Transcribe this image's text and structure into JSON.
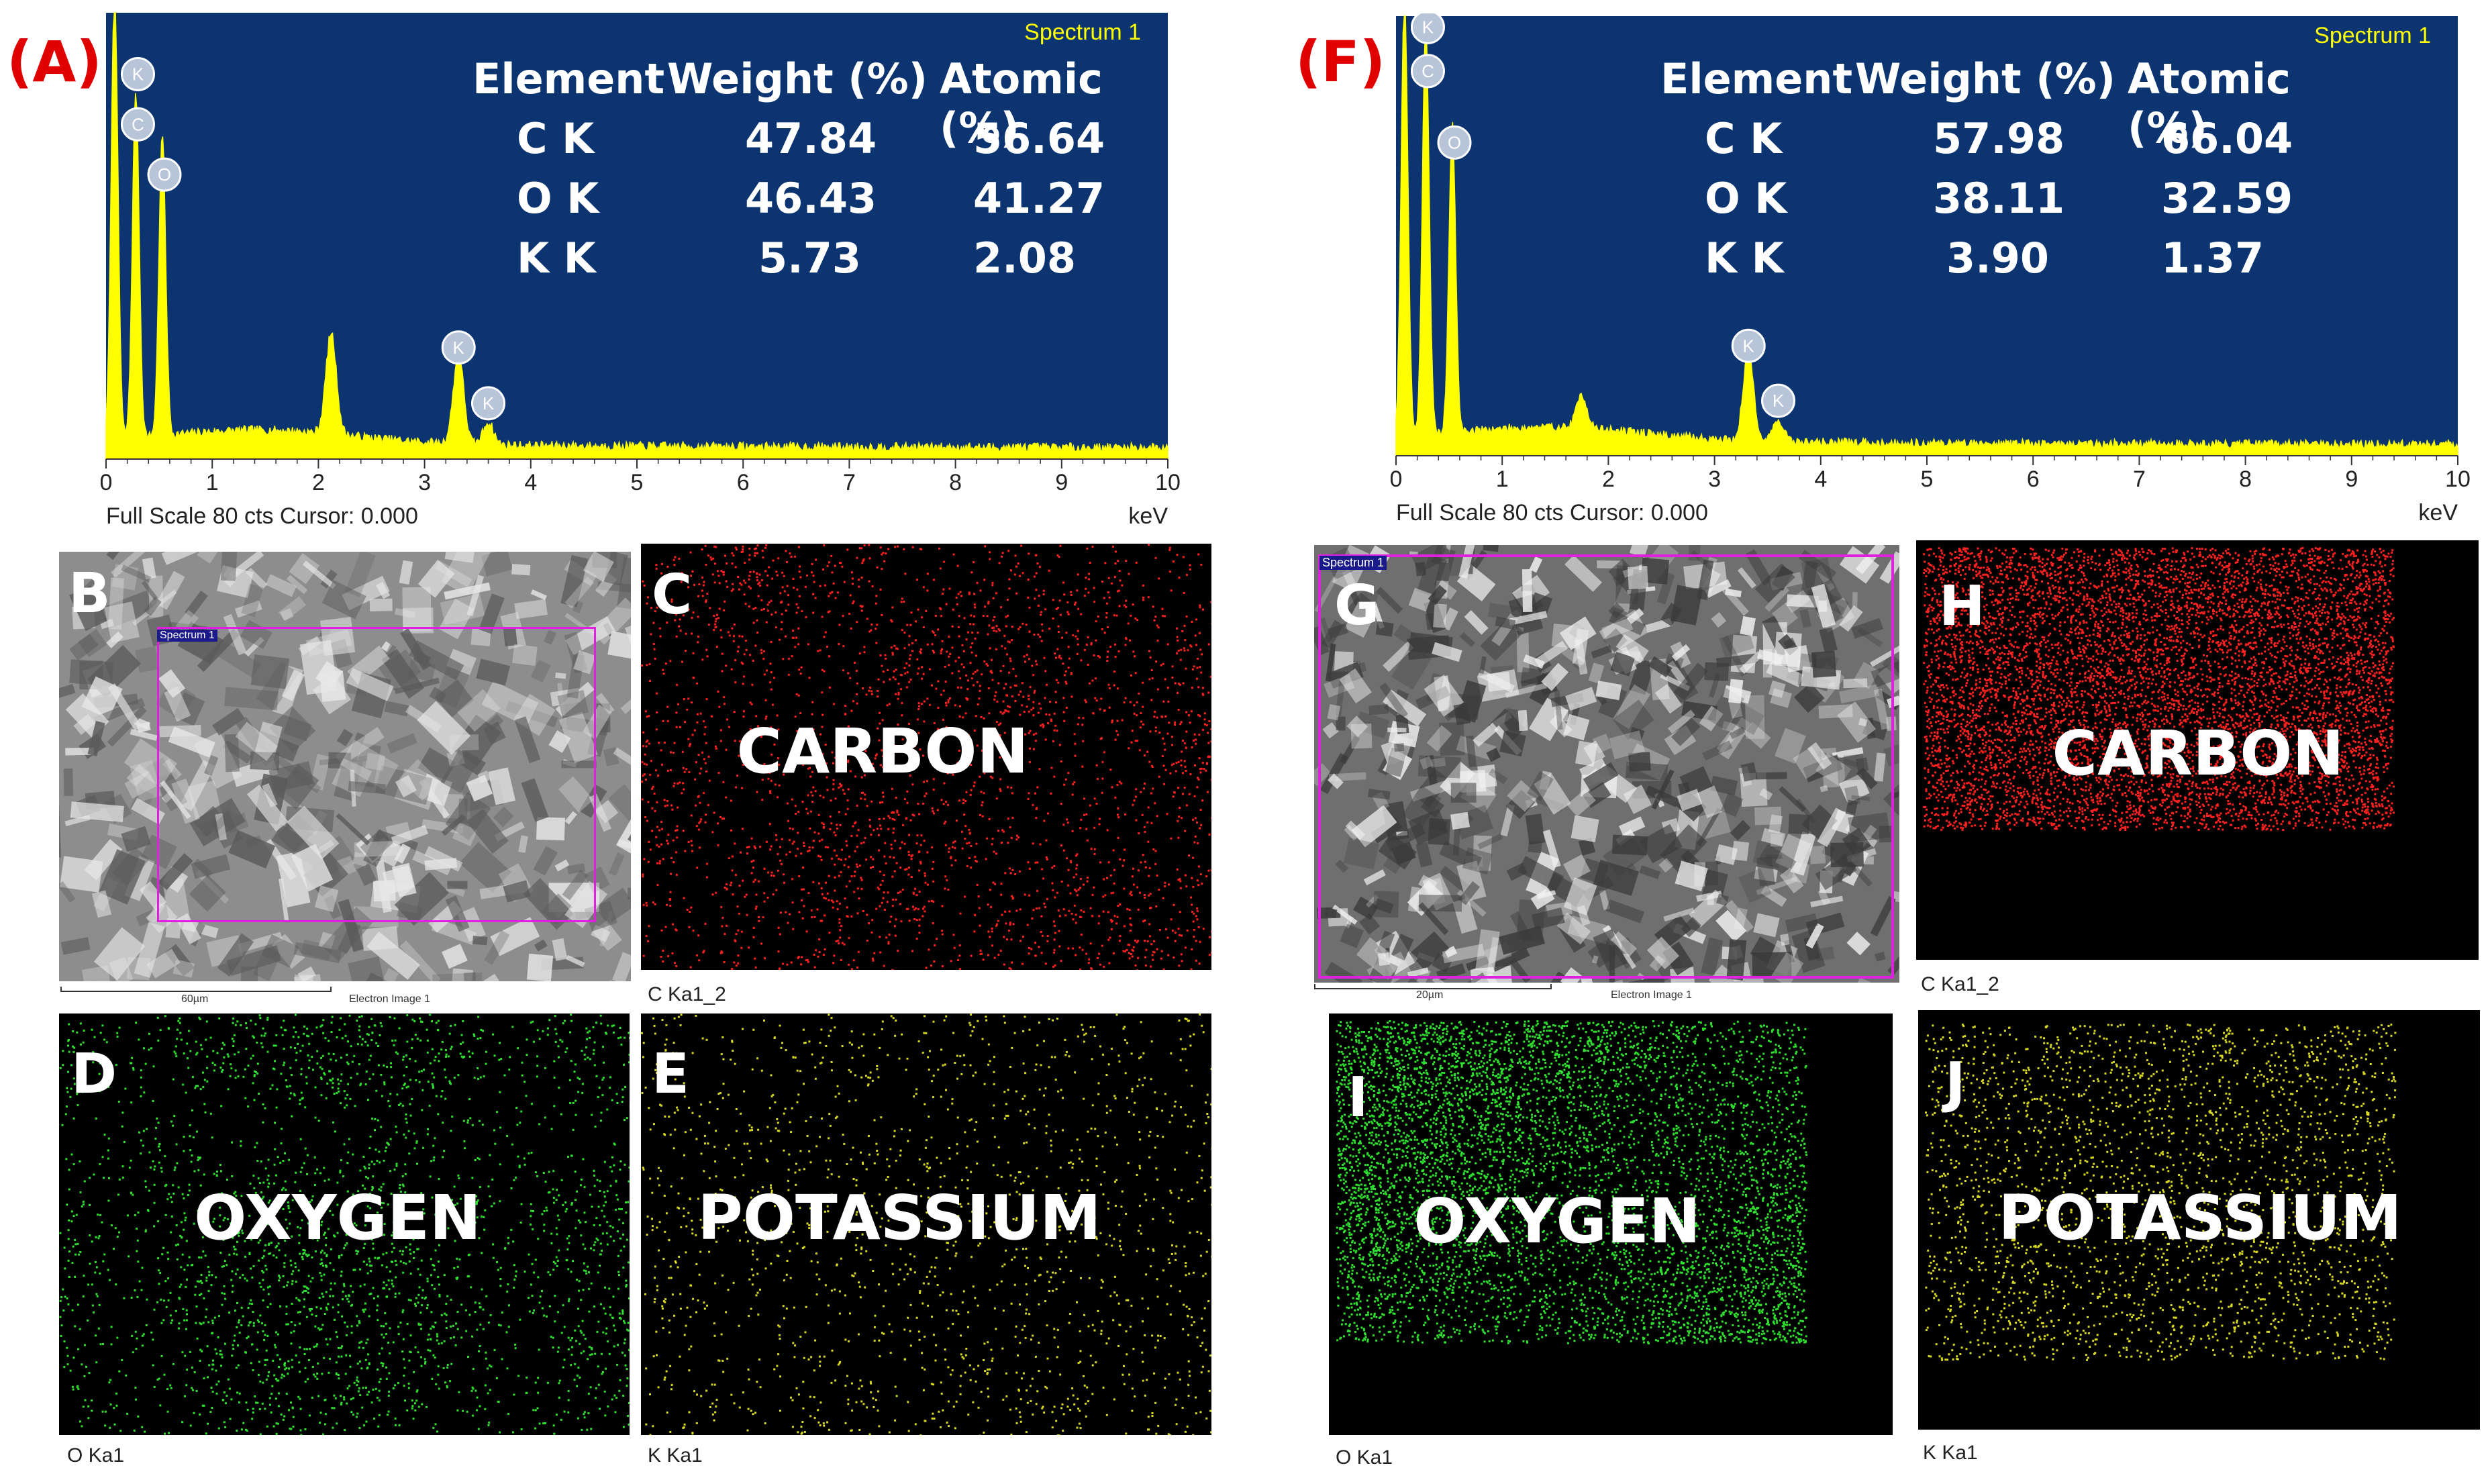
{
  "colors": {
    "spectrum_bg": "#0b3470",
    "spectrum_line": "#ffff00",
    "label_red": "#e00000",
    "carbon_dots": "#ff2020",
    "oxygen_dots": "#2ee02e",
    "potassium_dots": "#d8d820",
    "roi_box": "#e020e0",
    "spectrum_label": "#ffff00",
    "table_text": "#ffffff"
  },
  "panels": {
    "left": {
      "label": "(A)",
      "spectrum_title": "Spectrum 1",
      "scale_text": "Full Scale 80 cts Cursor: 0.000",
      "unit": "keV",
      "table": {
        "headers": [
          "Element",
          "Weight (%)",
          "Atomic (%)"
        ],
        "rows": [
          {
            "element": "C K",
            "weight": "47.84",
            "atomic": "56.64"
          },
          {
            "element": "O K",
            "weight": "46.43",
            "atomic": "41.27"
          },
          {
            "element": "K K",
            "weight": "5.73",
            "atomic": "2.08"
          }
        ]
      },
      "sem": {
        "letter": "B",
        "roi_label": "Spectrum 1",
        "scale_bar": "60µm",
        "image_label": "Electron Image 1"
      },
      "maps": [
        {
          "letter": "C",
          "word": "CARBON",
          "caption": "C Ka1_2"
        },
        {
          "letter": "D",
          "word": "OXYGEN",
          "caption": "O Ka1"
        },
        {
          "letter": "E",
          "word": "POTASSIUM",
          "caption": "K Ka1"
        }
      ]
    },
    "right": {
      "label": "(F)",
      "spectrum_title": "Spectrum 1",
      "scale_text": "Full Scale 80 cts Cursor: 0.000",
      "unit": "keV",
      "table": {
        "headers": [
          "Element",
          "Weight (%)",
          "Atomic (%)"
        ],
        "rows": [
          {
            "element": "C K",
            "weight": "57.98",
            "atomic": "66.04"
          },
          {
            "element": "O K",
            "weight": "38.11",
            "atomic": "32.59"
          },
          {
            "element": "K K",
            "weight": "3.90",
            "atomic": "1.37"
          }
        ]
      },
      "sem": {
        "letter": "G",
        "roi_label": "Spectrum 1",
        "scale_bar": "20µm",
        "image_label": "Electron Image 1"
      },
      "maps": [
        {
          "letter": "H",
          "word": "CARBON",
          "caption": "C Ka1_2"
        },
        {
          "letter": "I",
          "word": "OXYGEN",
          "caption": "O Ka1"
        },
        {
          "letter": "J",
          "word": "POTASSIUM",
          "caption": "K Ka1"
        }
      ]
    }
  },
  "chart_data": [
    {
      "type": "line",
      "title": "Spectrum 1",
      "xlabel": "keV",
      "ylabel": "",
      "xlim": [
        0,
        10
      ],
      "ylim": [
        0,
        80
      ],
      "xticks": [
        "0",
        "1",
        "2",
        "3",
        "4",
        "5",
        "6",
        "7",
        "8",
        "9",
        "10"
      ],
      "grid": false,
      "peaks": [
        {
          "element": "K",
          "x": 0.08,
          "y": 80
        },
        {
          "element": "C",
          "x": 0.28,
          "y": 62
        },
        {
          "element": "O",
          "x": 0.53,
          "y": 54
        },
        {
          "element": "",
          "x": 2.12,
          "y": 18
        },
        {
          "element": "K",
          "x": 3.32,
          "y": 16
        },
        {
          "element": "K",
          "x": 3.6,
          "y": 4
        }
      ],
      "peak_labels": [
        {
          "element": "K",
          "x": 0.3,
          "y": 69
        },
        {
          "element": "C",
          "x": 0.3,
          "y": 60
        },
        {
          "element": "O",
          "x": 0.55,
          "y": 51
        },
        {
          "element": "K",
          "x": 3.32,
          "y": 20
        },
        {
          "element": "K",
          "x": 3.6,
          "y": 10
        }
      ]
    },
    {
      "type": "line",
      "title": "Spectrum 1",
      "xlabel": "keV",
      "ylabel": "",
      "xlim": [
        0,
        10
      ],
      "ylim": [
        0,
        80
      ],
      "xticks": [
        "0",
        "1",
        "2",
        "3",
        "4",
        "5",
        "6",
        "7",
        "8",
        "9",
        "10"
      ],
      "grid": false,
      "peaks": [
        {
          "element": "K",
          "x": 0.08,
          "y": 80
        },
        {
          "element": "C",
          "x": 0.28,
          "y": 75
        },
        {
          "element": "O",
          "x": 0.53,
          "y": 56
        },
        {
          "element": "",
          "x": 1.75,
          "y": 6
        },
        {
          "element": "K",
          "x": 3.32,
          "y": 16
        },
        {
          "element": "K",
          "x": 3.6,
          "y": 4
        }
      ],
      "peak_labels": [
        {
          "element": "K",
          "x": 0.3,
          "y": 78
        },
        {
          "element": "C",
          "x": 0.3,
          "y": 70
        },
        {
          "element": "O",
          "x": 0.55,
          "y": 57
        },
        {
          "element": "K",
          "x": 3.32,
          "y": 20
        },
        {
          "element": "K",
          "x": 3.6,
          "y": 10
        }
      ]
    }
  ]
}
